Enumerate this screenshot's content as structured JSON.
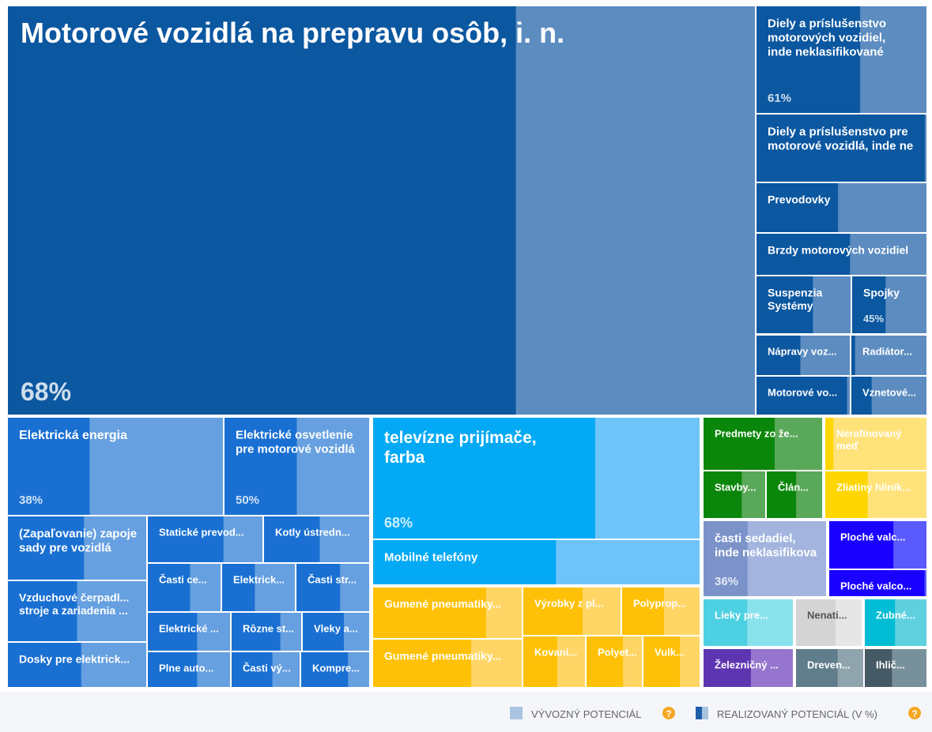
{
  "chart_data": {
    "type": "treemap",
    "legend": {
      "export_potential": "VÝVOZNÝ POTENCIÁL",
      "realized_potential": "REALIZOVANÝ POTENCIÁL (V %)",
      "help_icon": "?"
    },
    "items": [
      {
        "label": [
          "Motorové vozidlá na prepravu osôb, i. n."
        ],
        "value": 68,
        "value_label": "68%",
        "color": "#0b57a0",
        "light": "#5c8cc0"
      },
      {
        "label": [
          "Diely a príslušenstvo",
          "motorových vozidiel,",
          "inde neklasifikované"
        ],
        "value": 61,
        "value_label": "61%",
        "color": "#0b57a0",
        "light": "#5c8cc0"
      },
      {
        "label": [
          "Diely a príslušenstvo pre",
          "motorové vozidlá, inde ne"
        ],
        "value": 99,
        "color": "#0b57a0",
        "light": "#5c8cc0"
      },
      {
        "label": [
          "Prevodovky"
        ],
        "value": 48,
        "color": "#0b57a0",
        "light": "#5c8cc0"
      },
      {
        "label": [
          "Brzdy motorových vozidiel"
        ],
        "value": 55,
        "color": "#0b57a0",
        "light": "#5c8cc0"
      },
      {
        "label": [
          "Suspenzia",
          "Systémy"
        ],
        "value": 60,
        "color": "#0b57a0",
        "light": "#5c8cc0"
      },
      {
        "label": [
          "Spojky"
        ],
        "value": 45,
        "value_label": "45%",
        "color": "#0b57a0",
        "light": "#5c8cc0"
      },
      {
        "label": [
          "Nápravy voz..."
        ],
        "value": 47,
        "color": "#0b57a0",
        "light": "#5c8cc0"
      },
      {
        "label": [
          "Radiátor..."
        ],
        "value": 5,
        "color": "#0b57a0",
        "light": "#5c8cc0"
      },
      {
        "label": [
          "Motorové vo..."
        ],
        "value": 97,
        "color": "#0b57a0",
        "light": "#5c8cc0"
      },
      {
        "label": [
          "Vznetové..."
        ],
        "value": 27,
        "color": "#0b57a0",
        "light": "#5c8cc0"
      },
      {
        "label": [
          "Elektrická energia"
        ],
        "value": 38,
        "value_label": "38%",
        "color": "#1a70d2",
        "light": "#66a0e0"
      },
      {
        "label": [
          "Elektrické osvetlenie",
          "pre motorové vozidlá"
        ],
        "value": 50,
        "value_label": "50%",
        "color": "#1a70d2",
        "light": "#66a0e0"
      },
      {
        "label": [
          "(Zapaľovanie) zapoje",
          "sady pre vozidlá"
        ],
        "value": 55,
        "color": "#1a70d2",
        "light": "#66a0e0"
      },
      {
        "label": [
          "Vzduchové čerpadl...",
          "stroje a zariadenia ..."
        ],
        "value": 50,
        "color": "#1a70d2",
        "light": "#66a0e0"
      },
      {
        "label": [
          "Dosky pre elektrick..."
        ],
        "value": 53,
        "color": "#1a70d2",
        "light": "#66a0e0"
      },
      {
        "label": [
          "Statické prevod..."
        ],
        "value": 66,
        "color": "#1a70d2",
        "light": "#66a0e0"
      },
      {
        "label": [
          "Kotly ústredn..."
        ],
        "value": 53,
        "color": "#1a70d2",
        "light": "#66a0e0"
      },
      {
        "label": [
          "Časti ce..."
        ],
        "value": 58,
        "color": "#1a70d2",
        "light": "#66a0e0"
      },
      {
        "label": [
          "Elektrick..."
        ],
        "value": 45,
        "color": "#1a70d2",
        "light": "#66a0e0"
      },
      {
        "label": [
          "Časti str..."
        ],
        "value": 60,
        "color": "#1a70d2",
        "light": "#66a0e0"
      },
      {
        "label": [
          "Elektrické ..."
        ],
        "value": 60,
        "color": "#1a70d2",
        "light": "#66a0e0"
      },
      {
        "label": [
          "Rôzne st..."
        ],
        "value": 70,
        "color": "#1a70d2",
        "light": "#66a0e0"
      },
      {
        "label": [
          "Vleky a..."
        ],
        "value": 62,
        "color": "#1a70d2",
        "light": "#66a0e0"
      },
      {
        "label": [
          "Plne auto..."
        ],
        "value": 60,
        "color": "#1a70d2",
        "light": "#66a0e0"
      },
      {
        "label": [
          "Časti vý..."
        ],
        "value": 60,
        "color": "#1a70d2",
        "light": "#66a0e0"
      },
      {
        "label": [
          "Kompre..."
        ],
        "value": 69,
        "color": "#1a70d2",
        "light": "#66a0e0"
      },
      {
        "label": [
          "televízne prijímače,",
          "farba"
        ],
        "value": 68,
        "value_label": "68%",
        "color": "#03a9f4",
        "light": "#6ec4f8"
      },
      {
        "label": [
          "Mobilné telefóny"
        ],
        "value": 56,
        "color": "#03a9f4",
        "light": "#6ec4f8"
      },
      {
        "label": [
          "Gumené pneumatiky..."
        ],
        "value": 76,
        "color": "#ffc107",
        "light": "#ffd666"
      },
      {
        "label": [
          "Gumené pneumatiky..."
        ],
        "value": 66,
        "color": "#ffc107",
        "light": "#ffd666"
      },
      {
        "label": [
          "Výrobky z pl..."
        ],
        "value": 61,
        "color": "#ffc107",
        "light": "#ffd666"
      },
      {
        "label": [
          "Polyprop..."
        ],
        "value": 54,
        "color": "#ffc107",
        "light": "#ffd666"
      },
      {
        "label": [
          "Kovani..."
        ],
        "value": 55,
        "color": "#ffc107",
        "light": "#ffd666"
      },
      {
        "label": [
          "Polyet..."
        ],
        "value": 66,
        "color": "#ffc107",
        "light": "#ffd666"
      },
      {
        "label": [
          "Vulk..."
        ],
        "value": 65,
        "color": "#ffc107",
        "light": "#ffd666"
      },
      {
        "label": [
          "Predmety zo že..."
        ],
        "value": 60,
        "color": "#0a870a",
        "light": "#5aa85a"
      },
      {
        "label": [
          "Stavby..."
        ],
        "value": 62,
        "color": "#0a870a",
        "light": "#5aa85a"
      },
      {
        "label": [
          "Člán..."
        ],
        "value": 53,
        "color": "#0a870a",
        "light": "#5aa85a"
      },
      {
        "label": [
          "Nerafinovaný",
          "meď"
        ],
        "value": 8,
        "color": "#ffd600",
        "light": "#ffe27a"
      },
      {
        "label": [
          "Zliatiny hliník..."
        ],
        "value": 42,
        "color": "#ffd600",
        "light": "#ffe27a"
      },
      {
        "label": [
          "časti sedadiel,",
          "inde neklasifikova"
        ],
        "value": 36,
        "value_label": "36%",
        "color": "#7b93c9",
        "light": "#a3b5de"
      },
      {
        "label": [
          "Ploché valc..."
        ],
        "value": 66,
        "color": "#1a00ff",
        "light": "#5a5aff"
      },
      {
        "label": [
          "Ploché valco..."
        ],
        "value": 98,
        "color": "#1a00ff",
        "light": "#5a5aff"
      },
      {
        "label": [
          "Lieky pre..."
        ],
        "value": 49,
        "color": "#4dd0e1",
        "light": "#8ae2ed"
      },
      {
        "label": [
          "Nenati..."
        ],
        "value": 60,
        "color": "#d4d4d4",
        "light": "#e6e6e6"
      },
      {
        "label": [
          "Zubné..."
        ],
        "value": 49,
        "color": "#00bcd4",
        "light": "#5fd0de"
      },
      {
        "label": [
          "Železničný ..."
        ],
        "value": 53,
        "color": "#5e35b1",
        "light": "#9575cd"
      },
      {
        "label": [
          "Dreven..."
        ],
        "value": 62,
        "color": "#607d8b",
        "light": "#90a4ae"
      },
      {
        "label": [
          "Ihlič..."
        ],
        "value": 44,
        "color": "#455a64",
        "light": "#78909c"
      }
    ]
  }
}
